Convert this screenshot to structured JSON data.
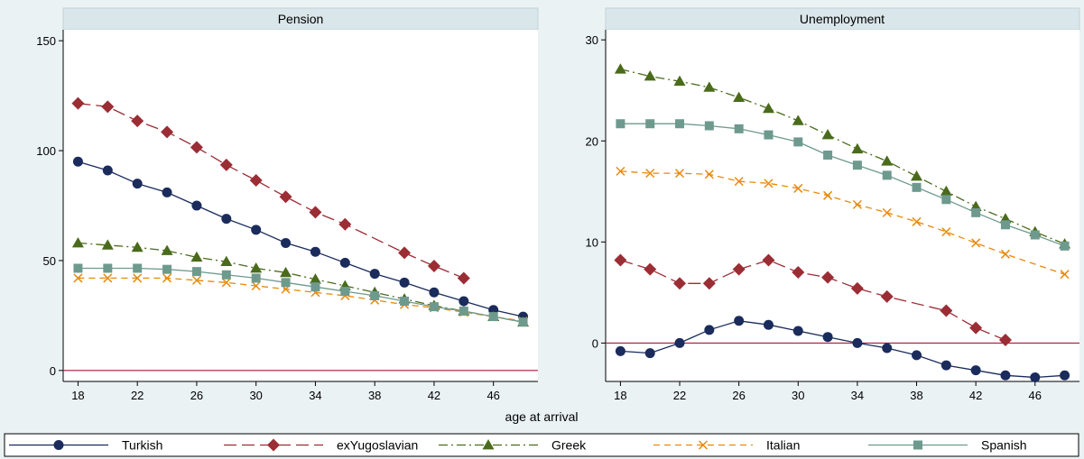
{
  "chart_data": {
    "type": "line",
    "xlabel": "age at arrival",
    "x": [
      18,
      20,
      22,
      24,
      26,
      28,
      30,
      32,
      34,
      36,
      38,
      40,
      42,
      44,
      46,
      48
    ],
    "x_ticks": [
      18,
      22,
      26,
      30,
      34,
      38,
      42,
      46
    ],
    "legend": [
      {
        "name": "Turkish",
        "color": "#1a2b5c",
        "marker": "circle",
        "dash": "solid"
      },
      {
        "name": "exYugoslavian",
        "color": "#9b2d35",
        "marker": "diamond",
        "dash": "longdash"
      },
      {
        "name": "Greek",
        "color": "#4a6b1c",
        "marker": "triangle",
        "dash": "dashdot"
      },
      {
        "name": "Italian",
        "color": "#e8890c",
        "marker": "x",
        "dash": "dash"
      },
      {
        "name": "Spanish",
        "color": "#6e9a8e",
        "marker": "square",
        "dash": "solid"
      }
    ],
    "panels": [
      {
        "title": "Pension",
        "ylim": [
          -5,
          155
        ],
        "y_ticks": [
          0,
          50,
          100,
          150
        ],
        "reference_line": 0,
        "series": [
          {
            "name": "Turkish",
            "values": [
              95,
              91,
              85,
              81,
              75,
              69,
              64,
              58,
              54,
              49,
              44,
              40,
              35.5,
              31.5,
              27.5,
              24.5
            ]
          },
          {
            "name": "exYugoslavian",
            "values": [
              121.5,
              120,
              113.5,
              108.5,
              101.5,
              93.5,
              86.5,
              79,
              72,
              66.5,
              null,
              53.5,
              47.5,
              42,
              null,
              null
            ]
          },
          {
            "name": "Greek",
            "values": [
              58,
              57,
              56,
              54.5,
              51.5,
              49.5,
              46.5,
              44.5,
              41.5,
              38.5,
              35.5,
              32.5,
              29.5,
              27,
              24.5,
              22
            ]
          },
          {
            "name": "Italian",
            "values": [
              42,
              42,
              42,
              42,
              41,
              40,
              38.5,
              37,
              35.5,
              34,
              32,
              30,
              28.5,
              26.5,
              24.5,
              22.5
            ]
          },
          {
            "name": "Spanish",
            "values": [
              46.5,
              46.5,
              46.5,
              46,
              45,
              43.5,
              42,
              40,
              38,
              36,
              34,
              31.5,
              29,
              27,
              24.5,
              22
            ]
          }
        ]
      },
      {
        "title": "Unemployment",
        "ylim": [
          -3.8,
          31
        ],
        "y_ticks": [
          0,
          10,
          20,
          30
        ],
        "reference_line": 0,
        "series": [
          {
            "name": "Turkish",
            "values": [
              -0.8,
              -1,
              0,
              1.3,
              2.2,
              1.8,
              1.2,
              0.6,
              0,
              -0.5,
              -1.2,
              -2.2,
              -2.7,
              -3.2,
              -3.4,
              -3.2
            ]
          },
          {
            "name": "exYugoslavian",
            "values": [
              8.2,
              7.3,
              5.9,
              5.9,
              7.3,
              8.2,
              7,
              6.5,
              5.4,
              4.6,
              null,
              3.2,
              1.5,
              0.3,
              null,
              null
            ]
          },
          {
            "name": "Greek",
            "values": [
              27.1,
              26.4,
              25.9,
              25.3,
              24.3,
              23.2,
              22,
              20.6,
              19.2,
              18,
              16.5,
              15,
              13.5,
              12.3,
              11,
              9.8
            ]
          },
          {
            "name": "Italian",
            "values": [
              17,
              16.8,
              16.8,
              16.7,
              16,
              15.8,
              15.3,
              14.6,
              13.7,
              12.9,
              12,
              11,
              9.9,
              8.8,
              null,
              6.8
            ]
          },
          {
            "name": "Spanish",
            "values": [
              21.7,
              21.7,
              21.7,
              21.5,
              21.2,
              20.6,
              19.9,
              18.6,
              17.6,
              16.6,
              15.4,
              14.2,
              12.9,
              11.7,
              10.7,
              9.6
            ]
          }
        ]
      }
    ]
  }
}
